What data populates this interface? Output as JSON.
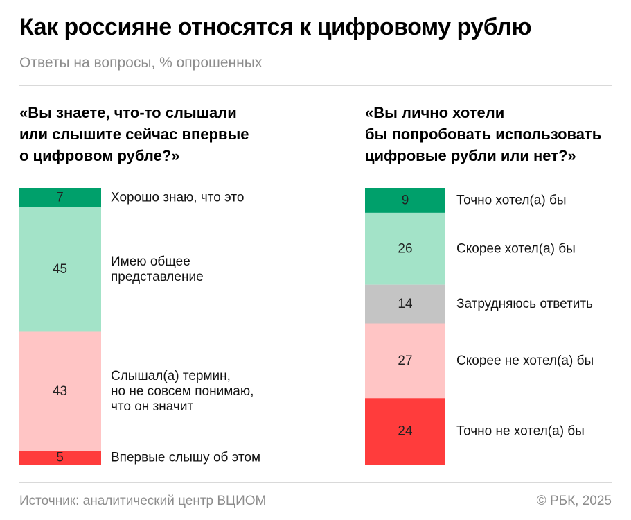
{
  "header": {
    "title": "Как россияне относятся к цифровому рублю",
    "subtitle": "Ответы на вопросы, % опрошенных"
  },
  "chart_data": [
    {
      "type": "bar",
      "stacked": true,
      "orientation": "vertical",
      "title_lines": [
        "«Вы знаете, что-то слышали",
        "или слышите сейчас впервые",
        "о цифровом рубле?»"
      ],
      "categories": [
        "Хорошо знаю, что это",
        "Имею общее представление",
        "Слышал(а) термин, но не совсем понимаю, что он значит",
        "Впервые слышу об этом"
      ],
      "label_lines": [
        [
          "Хорошо знаю, что это"
        ],
        [
          "Имею общее",
          "представление"
        ],
        [
          "Слышал(а) термин,",
          "но не совсем понимаю,",
          "что он значит"
        ],
        [
          "Впервые слышу об этом"
        ]
      ],
      "values": [
        7,
        45,
        43,
        5
      ],
      "colors": [
        "#00a06b",
        "#a3e3c8",
        "#ffc5c5",
        "#ff3c3c"
      ],
      "unit": "%"
    },
    {
      "type": "bar",
      "stacked": true,
      "orientation": "vertical",
      "title_lines": [
        "«Вы лично хотели",
        "бы попробовать использовать",
        "цифровые рубли или нет?»"
      ],
      "categories": [
        "Точно хотел(а) бы",
        "Скорее хотел(а) бы",
        "Затрудняюсь ответить",
        "Скорее не хотел(а) бы",
        "Точно не хотел(а) бы"
      ],
      "label_lines": [
        [
          "Точно хотел(а) бы"
        ],
        [
          "Скорее хотел(а) бы"
        ],
        [
          "Затрудняюсь ответить"
        ],
        [
          "Скорее не хотел(а) бы"
        ],
        [
          "Точно не хотел(а) бы"
        ]
      ],
      "values": [
        9,
        26,
        14,
        27,
        24
      ],
      "colors": [
        "#00a06b",
        "#a3e3c8",
        "#c4c4c4",
        "#ffc5c5",
        "#ff3c3c"
      ],
      "unit": "%"
    }
  ],
  "footer": {
    "source": "Источник: аналитический центр ВЦИОМ",
    "copyright": "© РБК, 2025"
  }
}
